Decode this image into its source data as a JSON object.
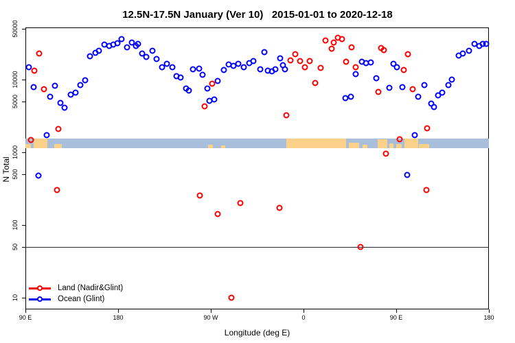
{
  "title": "12.5N-17.5N January (Ver 10)   2015-01-01 to 2020-12-18",
  "axes": {
    "x_label": "Longitude (deg E)",
    "y_label": "N Total",
    "x_ticks": [
      {
        "pos": 90,
        "label": "90 E"
      },
      {
        "pos": 180,
        "label": "180"
      },
      {
        "pos": 270,
        "label": "90 W"
      },
      {
        "pos": 360,
        "label": "0"
      },
      {
        "pos": 450,
        "label": "90 E"
      },
      {
        "pos": 540,
        "label": "180"
      }
    ],
    "y_ticks": [
      10,
      50,
      100,
      500,
      1000,
      5000,
      10000,
      50000
    ]
  },
  "legend": {
    "items": [
      {
        "label": "Land (Nadir&Glint)",
        "color": "#ff0000"
      },
      {
        "label": "Ocean (Glint)",
        "color": "#0000ff"
      }
    ]
  },
  "colors": {
    "land_series": "#ff0000",
    "ocean_series": "#0000ff",
    "map_ocean": "#a9bedb",
    "map_land": "#fbd18a",
    "axis": "#000000",
    "threshold": "#2a2a2a"
  },
  "chart_data": {
    "type": "scatter",
    "title": "12.5N-17.5N January (Ver 10)   2015-01-01 to 2020-12-18",
    "xlabel": "Longitude (deg E)",
    "ylabel": "N Total",
    "y_scale": "log",
    "y_range": [
      10,
      55000
    ],
    "x_axis_note": "longitude axis wraps eastward: 90E, 180, 90W, 0, 90E, 180; x stored as continuous deg-east 90..540",
    "x_range": [
      90,
      540
    ],
    "grid": false,
    "legend_position": "bottom-left",
    "threshold_line_y": 50,
    "map_band": {
      "description": "thin world-map strip at N~1200-2000 showing ocean/land for 12.5N-17.5N",
      "land_patches": [
        {
          "from": 90,
          "to": 95,
          "h": 0.45
        },
        {
          "from": 98,
          "to": 111,
          "h": 1
        },
        {
          "from": 118,
          "to": 125,
          "h": 0.45
        },
        {
          "from": 267,
          "to": 272,
          "h": 0.35
        },
        {
          "from": 280,
          "to": 284,
          "h": 0.3
        },
        {
          "from": 343,
          "to": 401,
          "h": 1
        },
        {
          "from": 404,
          "to": 414,
          "h": 0.6
        },
        {
          "from": 417,
          "to": 422,
          "h": 0.35
        },
        {
          "from": 432,
          "to": 441,
          "h": 0.9
        },
        {
          "from": 443,
          "to": 447,
          "h": 0.5
        },
        {
          "from": 450,
          "to": 455,
          "h": 0.4
        },
        {
          "from": 458,
          "to": 471,
          "h": 1
        },
        {
          "from": 472,
          "to": 482,
          "h": 0.45
        }
      ]
    },
    "series": [
      {
        "name": "Land (Nadir&Glint)",
        "color": "#ff0000",
        "points": [
          [
            103.3,
            22600
          ],
          [
            98.7,
            13200
          ],
          [
            108,
            7400
          ],
          [
            122,
            2080
          ],
          [
            95.3,
            1470
          ],
          [
            120.7,
            300
          ],
          [
            271.3,
            8790
          ],
          [
            264,
            4320
          ],
          [
            259.3,
            252
          ],
          [
            276.7,
            141
          ],
          [
            298.7,
            199
          ],
          [
            290,
            10
          ],
          [
            336.7,
            171
          ],
          [
            343.3,
            3200
          ],
          [
            347.3,
            18300
          ],
          [
            352,
            22200
          ],
          [
            356.7,
            17900
          ],
          [
            361.3,
            14700
          ],
          [
            366,
            17900
          ],
          [
            371.3,
            8980
          ],
          [
            376.7,
            14400
          ],
          [
            381.3,
            34800
          ],
          [
            387.3,
            26400
          ],
          [
            389.3,
            32000
          ],
          [
            393.3,
            38000
          ],
          [
            397.3,
            36400
          ],
          [
            401.3,
            17500
          ],
          [
            406.7,
            27500
          ],
          [
            410.7,
            14700
          ],
          [
            415.3,
            50
          ],
          [
            432.7,
            6790
          ],
          [
            435.3,
            26900
          ],
          [
            438,
            25200
          ],
          [
            440,
            958
          ],
          [
            453.3,
            1500
          ],
          [
            457.3,
            13500
          ],
          [
            461.3,
            22200
          ],
          [
            466,
            7400
          ],
          [
            479.3,
            300
          ],
          [
            480,
            2120
          ]
        ]
      },
      {
        "name": "Ocean (Glint)",
        "color": "#0000ff",
        "points": [
          [
            93.3,
            14700
          ],
          [
            98,
            7890
          ],
          [
            102.7,
            480
          ],
          [
            110.7,
            1710
          ],
          [
            114,
            5830
          ],
          [
            118.7,
            8240
          ],
          [
            124,
            4810
          ],
          [
            128,
            4140
          ],
          [
            134,
            6230
          ],
          [
            138.7,
            6640
          ],
          [
            143.3,
            8410
          ],
          [
            148,
            9790
          ],
          [
            152.7,
            20800
          ],
          [
            158,
            23100
          ],
          [
            161.3,
            24700
          ],
          [
            166.7,
            30000
          ],
          [
            171.3,
            29300
          ],
          [
            175.3,
            30000
          ],
          [
            179.3,
            31300
          ],
          [
            183.3,
            36400
          ],
          [
            188.7,
            27500
          ],
          [
            193.3,
            32000
          ],
          [
            197.3,
            29300
          ],
          [
            199.3,
            30700
          ],
          [
            203.3,
            22700
          ],
          [
            207.3,
            20300
          ],
          [
            213.3,
            24700
          ],
          [
            217.3,
            19100
          ],
          [
            222.7,
            14700
          ],
          [
            227.3,
            16400
          ],
          [
            232.7,
            14700
          ],
          [
            236.7,
            11100
          ],
          [
            240.7,
            10700
          ],
          [
            246,
            7570
          ],
          [
            248.7,
            7080
          ],
          [
            252.7,
            13900
          ],
          [
            258.7,
            14200
          ],
          [
            262,
            11700
          ],
          [
            266.7,
            7570
          ],
          [
            268.7,
            5130
          ],
          [
            273.3,
            5370
          ],
          [
            276.7,
            9600
          ],
          [
            282.7,
            13500
          ],
          [
            287.3,
            16100
          ],
          [
            292,
            15400
          ],
          [
            296.7,
            16400
          ],
          [
            302,
            14700
          ],
          [
            307.3,
            16800
          ],
          [
            311.3,
            17900
          ],
          [
            318,
            14000
          ],
          [
            322,
            23600
          ],
          [
            325.3,
            13200
          ],
          [
            329.3,
            12900
          ],
          [
            332.7,
            14000
          ],
          [
            337.3,
            19500
          ],
          [
            340,
            15700
          ],
          [
            342,
            14000
          ],
          [
            400.7,
            5600
          ],
          [
            406,
            5830
          ],
          [
            410.7,
            11900
          ],
          [
            416.7,
            17700
          ],
          [
            420.7,
            16700
          ],
          [
            425.3,
            17100
          ],
          [
            430.7,
            10400
          ],
          [
            443.3,
            7730
          ],
          [
            447.3,
            16400
          ],
          [
            450.7,
            14700
          ],
          [
            456,
            7900
          ],
          [
            460.7,
            490
          ],
          [
            468,
            1710
          ],
          [
            471.3,
            5830
          ],
          [
            477.3,
            8410
          ],
          [
            484,
            4710
          ],
          [
            486.7,
            4230
          ],
          [
            490.7,
            6100
          ],
          [
            494.7,
            6640
          ],
          [
            500.7,
            8410
          ],
          [
            504,
            10000
          ],
          [
            510.7,
            21200
          ],
          [
            514.7,
            22700
          ],
          [
            520.7,
            24700
          ],
          [
            526,
            30700
          ],
          [
            530.7,
            29300
          ],
          [
            534,
            30700
          ],
          [
            537.3,
            30700
          ]
        ]
      }
    ]
  }
}
